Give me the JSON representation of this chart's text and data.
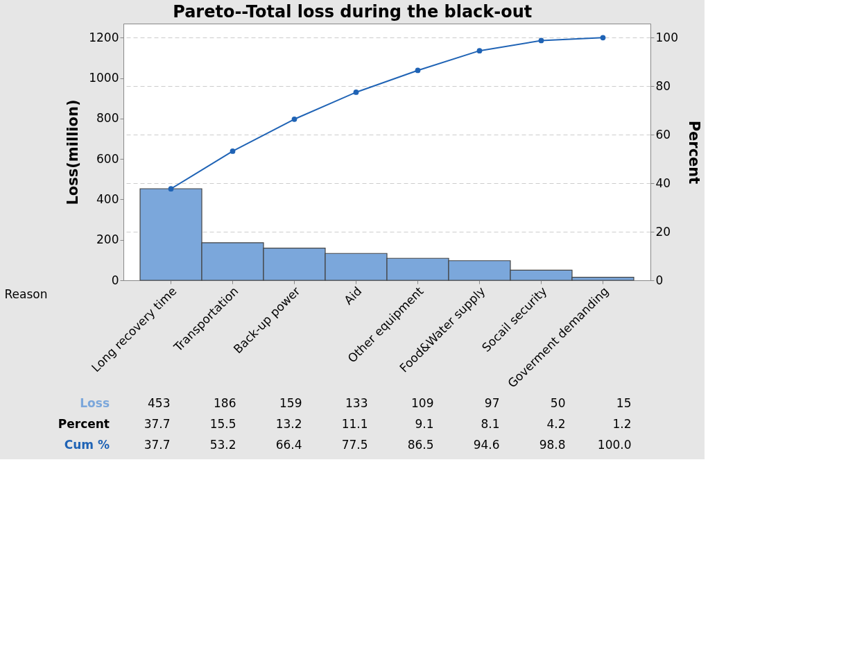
{
  "chart_data": {
    "type": "bar",
    "title": "Pareto--Total loss during the black-out",
    "xlabel": "Reason",
    "ylabel": "Loss(million)",
    "y2label": "Percent",
    "categories": [
      "Long recovery time",
      "Transportation",
      "Back-up power",
      "Aid",
      "Other equipment",
      "Food&Water supply",
      "Socail security",
      "Goverment demanding"
    ],
    "series": [
      {
        "name": "Loss",
        "color": "#7ba7db",
        "values": [
          453,
          186,
          159,
          133,
          109,
          97,
          50,
          15
        ],
        "value_labels": [
          "453",
          "186",
          "159",
          "133",
          "109",
          "97",
          "50",
          "15"
        ]
      },
      {
        "name": "Cum %",
        "type": "line",
        "axis": "y2",
        "color": "#1f63b5",
        "values": [
          37.7,
          53.2,
          66.4,
          77.5,
          86.5,
          94.6,
          98.8,
          100.0
        ],
        "value_labels": [
          "37.7",
          "53.2",
          "66.4",
          "77.5",
          "86.5",
          "94.6",
          "98.8",
          "100.0"
        ]
      }
    ],
    "annotations": [
      "Percent",
      "37.7",
      "15.5",
      "13.2",
      "11.1",
      "9.1",
      "8.1",
      "4.2",
      "1.2"
    ],
    "ylim": [
      0,
      1270
    ],
    "yticks": [
      0,
      200,
      400,
      600,
      800,
      1000,
      1200
    ],
    "y2lim": [
      0,
      105.8
    ],
    "y2ticks": [
      0,
      20,
      40,
      60,
      80,
      100
    ],
    "grid": "y",
    "marker": "circle",
    "line_style": "solid"
  }
}
